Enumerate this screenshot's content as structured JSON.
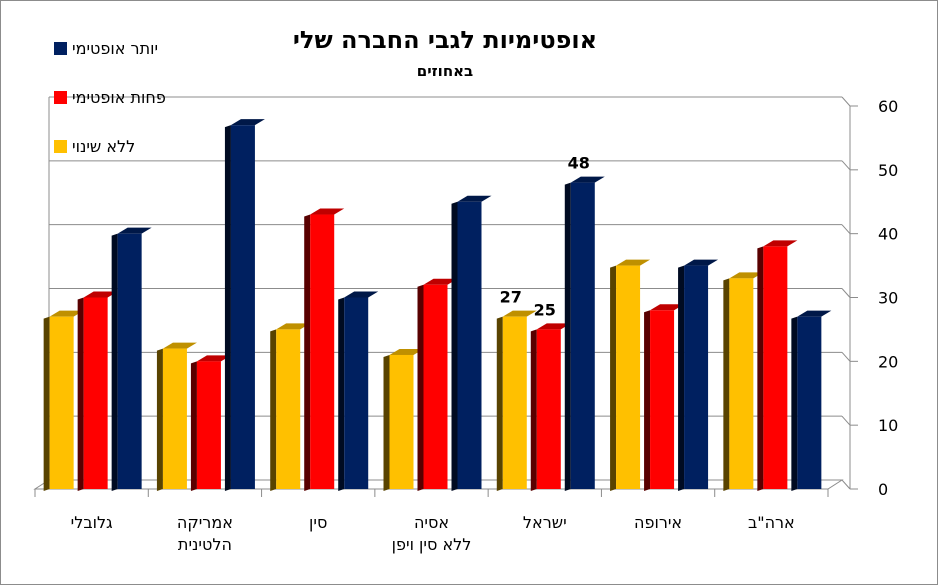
{
  "chart_data": {
    "type": "bar",
    "title": "אופטימיות לגבי החברה שלי",
    "subtitle": "באחוזים",
    "xlabel": "",
    "ylabel": "",
    "ylim": [
      0,
      60
    ],
    "yticks": [
      0,
      10,
      20,
      30,
      40,
      50,
      60
    ],
    "grid": true,
    "legend_position": "top-left",
    "categories": [
      [
        "גלובלי"
      ],
      [
        "אמריקה",
        "הלטינית"
      ],
      [
        "סין"
      ],
      [
        "אסיה",
        "ללא סין ויפן"
      ],
      [
        "ישראל"
      ],
      [
        "אירופה"
      ],
      [
        "ארה\"ב"
      ]
    ],
    "series": [
      {
        "name": "ללא שינוי",
        "color": "#FFC000",
        "values": [
          27,
          22,
          25,
          21,
          27,
          35,
          33
        ]
      },
      {
        "name": "פחות אופטימי",
        "color": "#FF0000",
        "values": [
          30,
          20,
          43,
          32,
          25,
          28,
          38
        ]
      },
      {
        "name": "יותר אופטימי",
        "color": "#002060",
        "values": [
          40,
          57,
          30,
          45,
          48,
          35,
          27
        ]
      }
    ],
    "data_labels": [
      {
        "category_index": 4,
        "series_index": 0,
        "text": "27"
      },
      {
        "category_index": 4,
        "series_index": 1,
        "text": "25"
      },
      {
        "category_index": 4,
        "series_index": 2,
        "text": "48"
      }
    ]
  }
}
